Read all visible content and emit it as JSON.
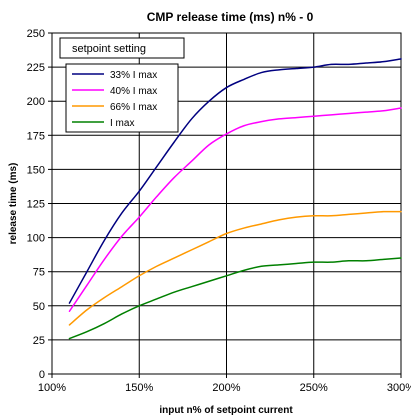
{
  "chart_data": {
    "type": "line",
    "title": "CMP release time (ms) n% - 0",
    "xlabel": "input n% of setpoint current",
    "ylabel": "release time (ms)",
    "xlim": [
      100,
      300
    ],
    "ylim": [
      0,
      250
    ],
    "x_ticks": [
      "100%",
      "150%",
      "200%",
      "250%",
      "300%"
    ],
    "y_ticks": [
      "0",
      "25",
      "50",
      "75",
      "100",
      "125",
      "150",
      "175",
      "200",
      "225",
      "250"
    ],
    "grid": "vertical and horizontal",
    "legend": {
      "title": "setpoint setting",
      "placement": "top-left"
    },
    "series": [
      {
        "name": "33% I max",
        "color": "#000080",
        "x": [
          110,
          120,
          130,
          140,
          150,
          160,
          170,
          180,
          190,
          200,
          210,
          220,
          230,
          240,
          250,
          260,
          270,
          280,
          290,
          300
        ],
        "y": [
          52,
          75,
          98,
          118,
          134,
          152,
          170,
          187,
          200,
          210,
          216,
          221,
          223,
          224,
          225,
          227,
          227,
          228,
          229,
          231
        ]
      },
      {
        "name": "40% I max",
        "color": "#ff00ff",
        "x": [
          110,
          120,
          130,
          140,
          150,
          160,
          170,
          180,
          190,
          200,
          210,
          220,
          230,
          240,
          250,
          260,
          270,
          280,
          290,
          300
        ],
        "y": [
          46,
          65,
          84,
          101,
          115,
          130,
          144,
          156,
          168,
          176,
          182,
          185,
          187,
          188,
          189,
          190,
          191,
          192,
          193,
          195
        ]
      },
      {
        "name": "66% I max",
        "color": "#ff9900",
        "x": [
          110,
          120,
          130,
          140,
          150,
          160,
          170,
          180,
          190,
          200,
          210,
          220,
          230,
          240,
          250,
          260,
          270,
          280,
          290,
          300
        ],
        "y": [
          36,
          47,
          56,
          64,
          72,
          79,
          85,
          91,
          97,
          103,
          107,
          110,
          113,
          115,
          116,
          116,
          117,
          118,
          119,
          119
        ]
      },
      {
        "name": "I max",
        "color": "#008000",
        "x": [
          110,
          120,
          130,
          140,
          150,
          160,
          170,
          180,
          190,
          200,
          210,
          220,
          230,
          240,
          250,
          260,
          270,
          280,
          290,
          300
        ],
        "y": [
          26,
          31,
          37,
          44,
          50,
          55,
          60,
          64,
          68,
          72,
          76,
          79,
          80,
          81,
          82,
          82,
          83,
          83,
          84,
          85
        ]
      }
    ]
  }
}
